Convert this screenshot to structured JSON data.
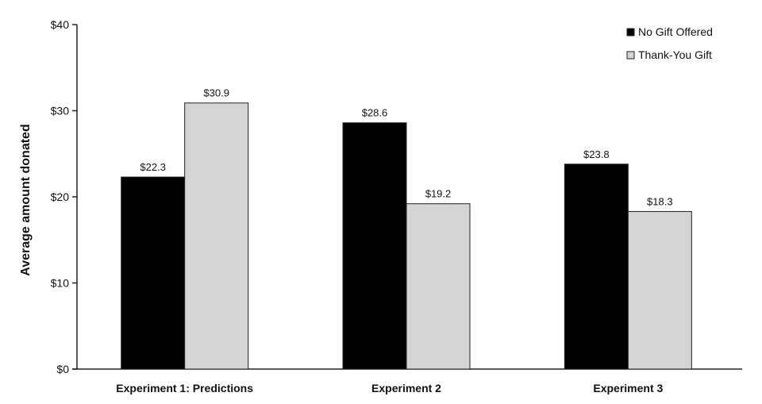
{
  "chart_data": {
    "type": "bar",
    "title": "",
    "xlabel": "",
    "ylabel": "Average amount donated",
    "ylim": [
      0,
      40
    ],
    "yticks": [
      0,
      10,
      20,
      30,
      40
    ],
    "ytick_labels": [
      "$0",
      "$10",
      "$20",
      "$30",
      "$40"
    ],
    "categories": [
      "Experiment 1: Predictions",
      "Experiment 2",
      "Experiment 3"
    ],
    "series": [
      {
        "name": "No Gift Offered",
        "color": "#000000",
        "values": [
          22.3,
          28.6,
          23.8
        ],
        "labels": [
          "$22.3",
          "$28.6",
          "$23.8"
        ]
      },
      {
        "name": "Thank-You Gift",
        "color": "#d4d4d4",
        "values": [
          30.9,
          19.2,
          18.3
        ],
        "labels": [
          "$30.9",
          "$19.2",
          "$18.3"
        ]
      }
    ],
    "grid": false,
    "legend_position": "top-right"
  }
}
